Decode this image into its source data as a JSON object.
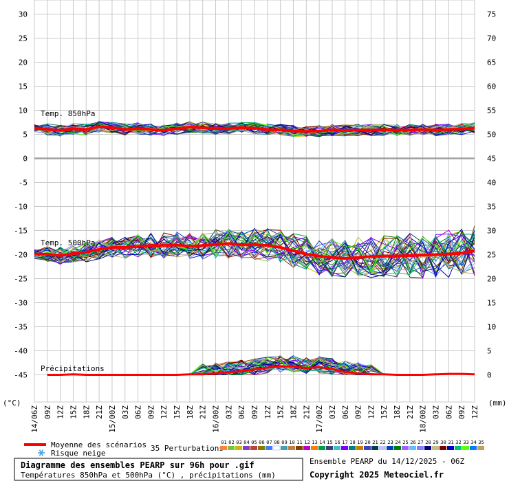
{
  "chart_data": {
    "type": "line",
    "title": "Diagramme des ensembles PEARP sur 96h pour .gif",
    "subtitle": "Températures 850hPa et 500hPa (°C) , précipitations (mm)",
    "run_label": "Ensemble PEARP du 14/12/2025 - 06Z",
    "copyright": "Copyright 2025 Meteociel.fr",
    "y_left_unit": "(°C)",
    "y_right_unit": "(mm)",
    "y_left_range": [
      -50,
      30
    ],
    "y_left_ticks": [
      30,
      25,
      20,
      15,
      10,
      5,
      0,
      -5,
      -10,
      -15,
      -20,
      -25,
      -30,
      -35,
      -40,
      -45
    ],
    "y_right_range": [
      -5,
      75
    ],
    "y_right_ticks": [
      75,
      70,
      65,
      60,
      55,
      50,
      45,
      40,
      35,
      30,
      25,
      20,
      15,
      10,
      5,
      0
    ],
    "x_ticks": [
      "14/06Z",
      "09Z",
      "12Z",
      "15Z",
      "18Z",
      "21Z",
      "15/00Z",
      "03Z",
      "06Z",
      "09Z",
      "12Z",
      "15Z",
      "18Z",
      "21Z",
      "16/00Z",
      "03Z",
      "06Z",
      "09Z",
      "12Z",
      "15Z",
      "18Z",
      "21Z",
      "17/00Z",
      "03Z",
      "06Z",
      "09Z",
      "12Z",
      "15Z",
      "18Z",
      "21Z",
      "18/00Z",
      "03Z",
      "06Z",
      "09Z",
      "12Z"
    ],
    "grid": true,
    "panel_labels": {
      "t850": "Temp. 850hPa",
      "t500": "Temp. 500hPa",
      "precip": "Précipitations"
    },
    "legend": {
      "mean_label": "Moyenne des scénarios",
      "snow_label": "Risque neige",
      "perturbations_label": "35 Perturbations",
      "member_numbers": [
        "01",
        "02",
        "03",
        "04",
        "05",
        "06",
        "07",
        "08",
        "09",
        "10",
        "11",
        "12",
        "13",
        "14",
        "15",
        "16",
        "17",
        "18",
        "19",
        "20",
        "21",
        "22",
        "23",
        "24",
        "25",
        "26",
        "27",
        "28",
        "29",
        "30",
        "31",
        "32",
        "33",
        "34",
        "35"
      ],
      "member_colors": [
        "#ff8040",
        "#80c040",
        "#c0c000",
        "#8040c0",
        "#c04040",
        "#808000",
        "#4080ff",
        "#ffffff",
        "#40a0c0",
        "#c08040",
        "#804000",
        "#c000c0",
        "#ff8000",
        "#00a040",
        "#404080",
        "#40c0c0",
        "#8000ff",
        "#008080",
        "#c08000",
        "#4040c0",
        "#004040",
        "#c0c0ff",
        "#0040c0",
        "#008000",
        "#a060ff",
        "#60c0ff",
        "#8080ff",
        "#000080",
        "#c0c080",
        "#800000",
        "#0000c0",
        "#00c080",
        "#60ff00",
        "#0080ff",
        "#c0a060"
      ]
    },
    "mean_color": "#ff0000",
    "series": [
      {
        "name": "Moyenne des scénarios",
        "t850": [
          6.3,
          6.0,
          5.8,
          6.1,
          6.0,
          6.6,
          6.4,
          6.0,
          6.2,
          6.0,
          5.8,
          6.2,
          6.5,
          6.4,
          6.2,
          6.2,
          6.4,
          6.3,
          6.0,
          5.9,
          5.7,
          5.6,
          5.7,
          5.9,
          5.8,
          5.9,
          5.9,
          5.9,
          5.9,
          5.9,
          6.0,
          5.9,
          6.0,
          6.1,
          6.3
        ],
        "t500": [
          -19.9,
          -19.9,
          -20.2,
          -19.8,
          -19.5,
          -18.9,
          -18.5,
          -18.5,
          -18.3,
          -18.1,
          -18.1,
          -18.0,
          -18.3,
          -18.1,
          -17.9,
          -17.7,
          -18.0,
          -17.9,
          -18.1,
          -18.5,
          -19.2,
          -19.9,
          -20.3,
          -20.6,
          -20.8,
          -20.6,
          -20.4,
          -20.3,
          -20.3,
          -20.2,
          -20.1,
          -20.0,
          -19.9,
          -19.7,
          -19.2
        ],
        "precip": [
          null,
          0,
          0,
          0.1,
          0,
          0,
          0,
          0,
          0,
          0,
          0,
          0,
          0.1,
          0.1,
          0.3,
          0.5,
          0.8,
          1.1,
          1.5,
          1.8,
          1.7,
          1.4,
          1.6,
          1.2,
          0.6,
          0.3,
          0.1,
          0.1,
          0,
          0,
          0,
          0.1,
          0.2,
          0.2,
          0.1
        ]
      }
    ]
  }
}
